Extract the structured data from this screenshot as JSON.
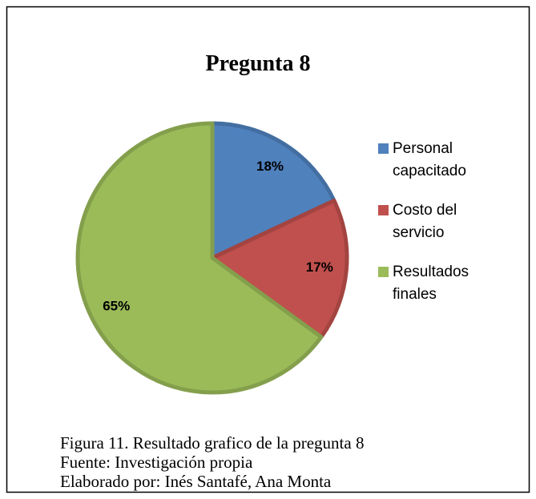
{
  "chart_data": {
    "type": "pie",
    "title": "Pregunta 8",
    "categories": [
      "Personal capacitado",
      "Costo del servicio",
      "Resultados finales"
    ],
    "values": [
      18,
      17,
      65
    ],
    "value_labels": [
      "18%",
      "17%",
      "65%"
    ],
    "colors": [
      "#4f81bd",
      "#c0504d",
      "#9bbb59"
    ],
    "legend": "right",
    "notes": [
      "Figura 11. Resultado grafico de la pregunta 8",
      "Fuente: Investigación propia",
      "Elaborado por: Inés Santafé, Ana Monta"
    ]
  }
}
